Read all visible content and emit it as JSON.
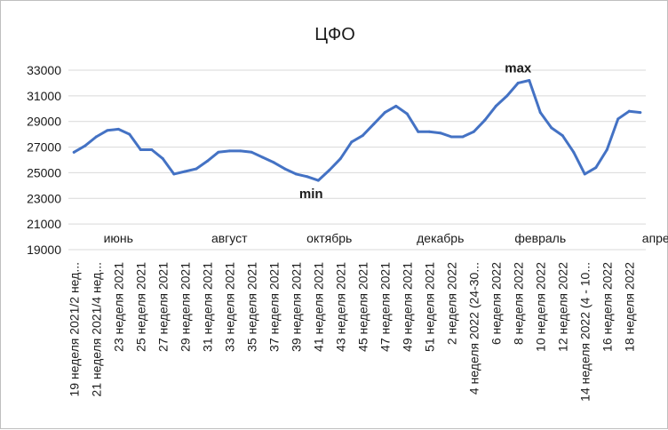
{
  "chart_data": {
    "type": "line",
    "title": "ЦФО",
    "ylim": [
      19000,
      33000
    ],
    "yticks": [
      19000,
      21000,
      23000,
      25000,
      27000,
      29000,
      31000,
      33000
    ],
    "grid": true,
    "series": [
      {
        "color": "#4472c4",
        "values": [
          26600,
          27100,
          27800,
          28300,
          28400,
          28000,
          26800,
          26800,
          26100,
          24900,
          25100,
          25300,
          25900,
          26600,
          26700,
          26700,
          26600,
          26200,
          25800,
          25300,
          24900,
          24700,
          24400,
          25200,
          26100,
          27400,
          27900,
          28800,
          29700,
          30200,
          29600,
          28200,
          28200,
          28100,
          27800,
          27800,
          28200,
          29100,
          30200,
          31000,
          32000,
          32200,
          29700,
          28500,
          27900,
          26600,
          24900,
          25400,
          26800,
          29200,
          29800,
          29700
        ]
      }
    ],
    "x_tick_labels": [
      "19 неделя 2021/2 нед...",
      "21 неделя 2021/4 нед...",
      "23 неделя 2021",
      "25 неделя 2021",
      "27 неделя 2021",
      "29 неделя 2021",
      "31 неделя 2021",
      "33 неделя 2021",
      "35 неделя 2021",
      "37 неделя 2021",
      "39 неделя 2021",
      "41 неделя 2021",
      "43 неделя 2021",
      "45 неделя 2021",
      "47 неделя 2021",
      "49 неделя 2021",
      "51 неделя 2021",
      "2 неделя 2022",
      "4 неделя 2022 (24-30...",
      "6 неделя 2022",
      "8 неделя 2022",
      "10 неделя 2022",
      "12 неделя 2022",
      "14 неделя 2022 (4 - 10...",
      "16 неделя 2022",
      "18 неделя 2022"
    ],
    "month_labels": [
      {
        "text": "июнь",
        "index": 4
      },
      {
        "text": "август",
        "index": 14
      },
      {
        "text": "октябрь",
        "index": 23
      },
      {
        "text": "декабрь",
        "index": 33
      },
      {
        "text": "февраль",
        "index": 42
      },
      {
        "text": "апрель",
        "index": 53
      }
    ],
    "annotations": [
      {
        "text": "max",
        "index": 40
      },
      {
        "text": "min",
        "index": 22
      }
    ]
  }
}
